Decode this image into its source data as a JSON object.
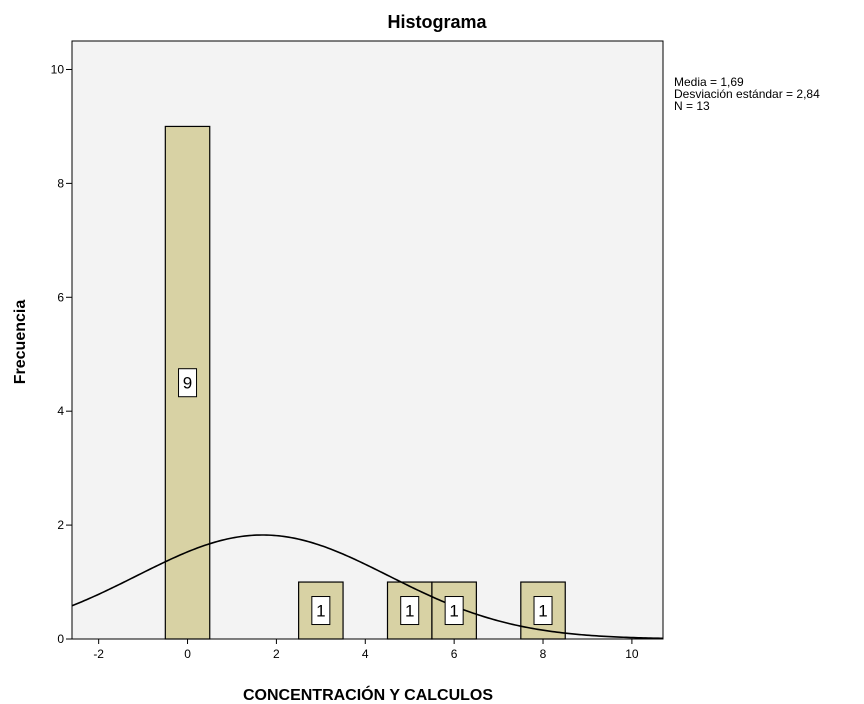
{
  "chart_data": {
    "type": "bar",
    "title": "Histograma",
    "xlabel": "CONCENTRACIÓN Y CALCULOS",
    "ylabel": "Frecuencia",
    "xlim": [
      -2.6,
      10.7
    ],
    "ylim": [
      0,
      10.5
    ],
    "x_ticks": [
      -2,
      0,
      2,
      4,
      6,
      8,
      10
    ],
    "x_tick_labels": [
      "-2",
      "0",
      "2",
      "4",
      "6",
      "8",
      "10"
    ],
    "y_ticks": [
      0,
      2,
      4,
      6,
      8,
      10
    ],
    "y_tick_labels": [
      "0",
      "2",
      "4",
      "6",
      "8",
      "10"
    ],
    "bin_width": 1,
    "bins": [
      {
        "x_start": -0.5,
        "x_end": 0.5,
        "count": 9,
        "label": "9"
      },
      {
        "x_start": 2.5,
        "x_end": 3.5,
        "count": 1,
        "label": "1"
      },
      {
        "x_start": 4.5,
        "x_end": 5.5,
        "count": 1,
        "label": "1"
      },
      {
        "x_start": 5.5,
        "x_end": 6.5,
        "count": 1,
        "label": "1"
      },
      {
        "x_start": 7.5,
        "x_end": 8.5,
        "count": 1,
        "label": "1"
      }
    ],
    "normal_curve": {
      "mean": 1.69,
      "sd": 2.84,
      "n": 13
    },
    "grid": false,
    "colors": {
      "bar_fill": "#d8d2a4",
      "bar_stroke": "#000000",
      "plot_bg": "#f3f3f3",
      "curve": "#000000"
    }
  },
  "stats": {
    "mean_text": "Media = 1,69",
    "sd_text": "Desviación estándar = 2,84",
    "n_text": "N = 13"
  }
}
